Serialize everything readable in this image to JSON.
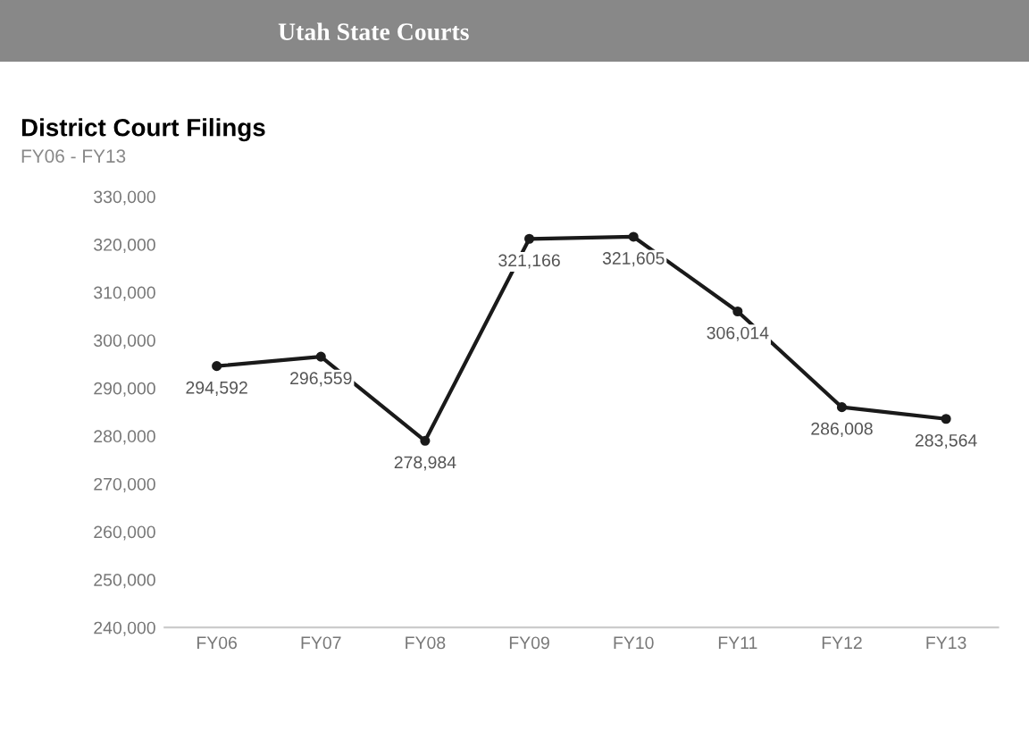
{
  "chart_data": {
    "type": "line",
    "title": "District Court Filings",
    "subtitle": "FY06 - FY13",
    "annotations": [
      "Utah State Courts"
    ],
    "categories": [
      "FY06",
      "FY07",
      "FY08",
      "FY09",
      "FY10",
      "FY11",
      "FY12",
      "FY13"
    ],
    "series": [
      {
        "color": "#1a1a1a",
        "values": [
          294592,
          296559,
          278984,
          321166,
          321605,
          306014,
          286008,
          283564
        ]
      }
    ],
    "value_labels": [
      "294,592",
      "296,559",
      "278,984",
      "321,166",
      "321,605",
      "306,014",
      "286,008",
      "283,564"
    ],
    "ylim": [
      240000,
      330000
    ],
    "yticks": [
      {
        "value": 240000,
        "label": "240,000"
      },
      {
        "value": 250000,
        "label": "250,000"
      },
      {
        "value": 260000,
        "label": "260,000"
      },
      {
        "value": 270000,
        "label": "270,000"
      },
      {
        "value": 280000,
        "label": "280,000"
      },
      {
        "value": 290000,
        "label": "290,000"
      },
      {
        "value": 300000,
        "label": "300,000"
      },
      {
        "value": 310000,
        "label": "310,000"
      },
      {
        "value": 320000,
        "label": "320,000"
      },
      {
        "value": 330000,
        "label": "330,000"
      }
    ],
    "grid": false,
    "marker": "circle",
    "line_style": "solid"
  }
}
